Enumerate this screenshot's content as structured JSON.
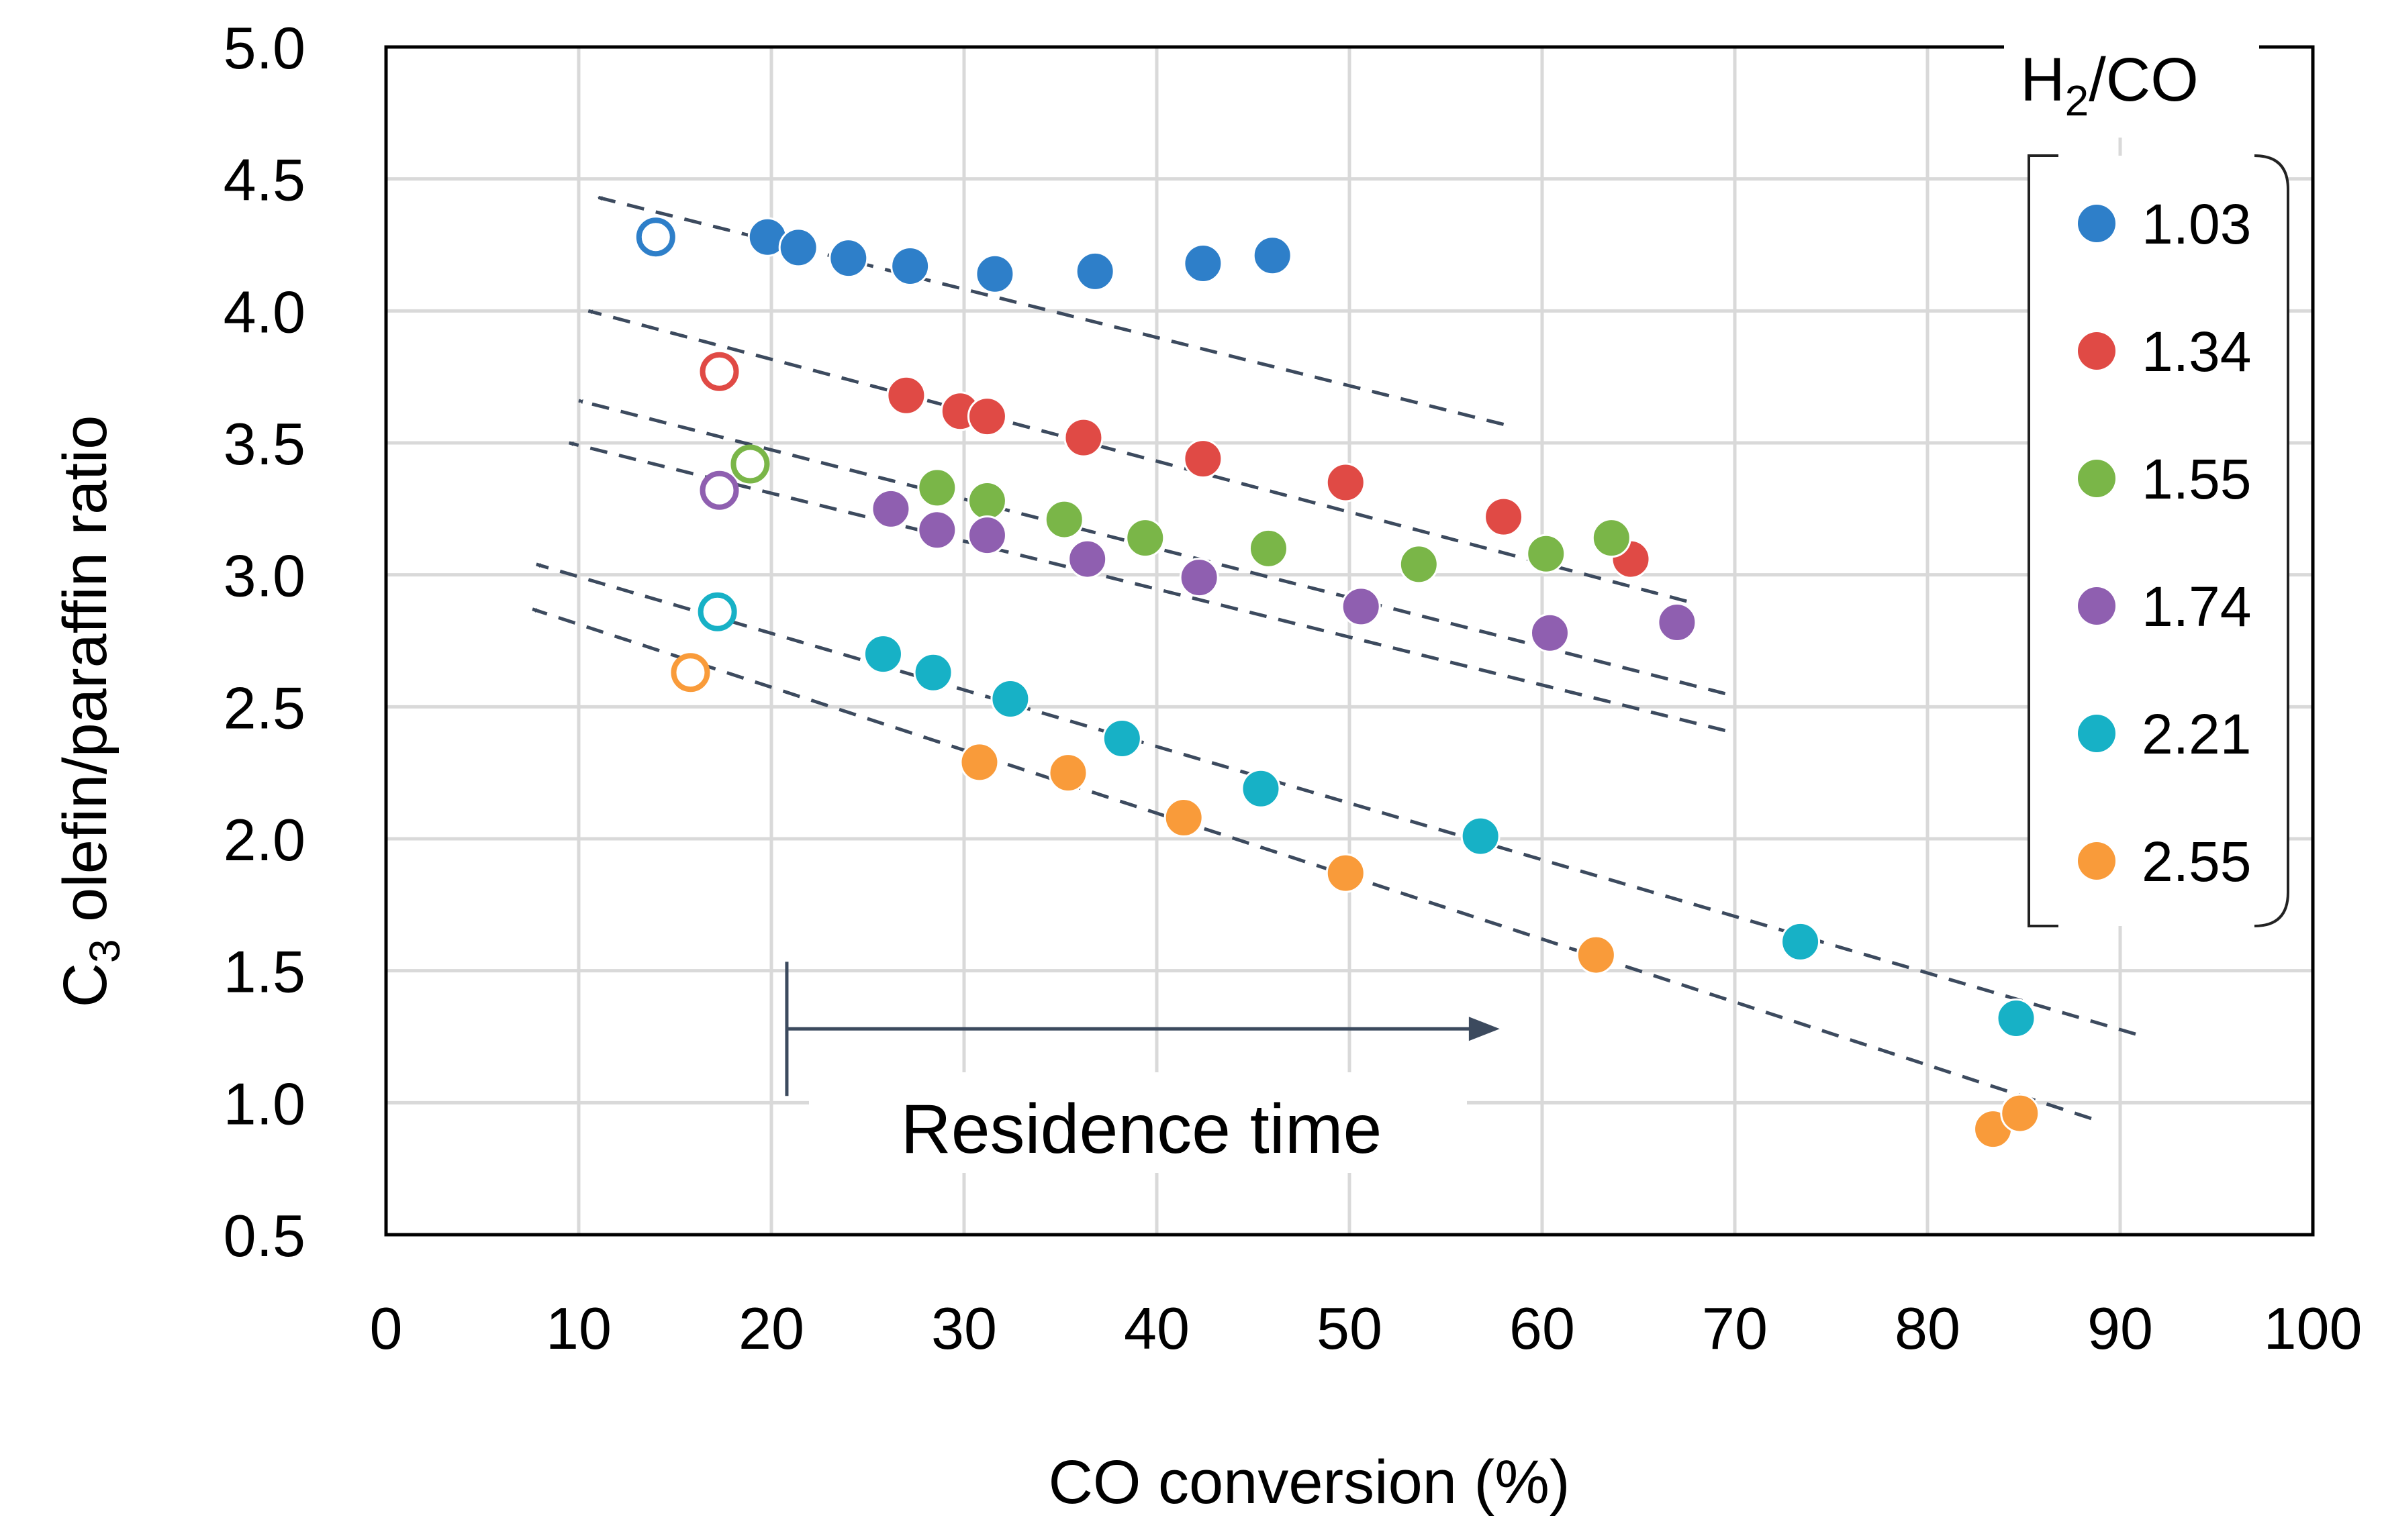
{
  "chart_data": {
    "type": "scatter",
    "title": "",
    "xlabel": "CO conversion (%)",
    "ylabel_main": "C",
    "ylabel_sub": "3",
    "ylabel_rest": " olefin/paraffin ratio",
    "xlim": [
      0,
      100
    ],
    "ylim": [
      0.5,
      5.0
    ],
    "x_ticks": [
      0,
      10,
      20,
      30,
      40,
      50,
      60,
      70,
      80,
      90,
      100
    ],
    "x_tick_labels": [
      "0",
      "10",
      "20",
      "30",
      "40",
      "50",
      "60",
      "70",
      "80",
      "90",
      "100"
    ],
    "y_ticks": [
      0.5,
      1.0,
      1.5,
      2.0,
      2.5,
      3.0,
      3.5,
      4.0,
      4.5,
      5.0
    ],
    "y_tick_labels": [
      "0.5",
      "1.0",
      "1.5",
      "2.0",
      "2.5",
      "3.0",
      "3.5",
      "4.0",
      "4.5",
      "5.0"
    ],
    "grid": true,
    "legend": {
      "title_main": "H",
      "title_sub": "2",
      "title_rest": "/CO",
      "placement": "right"
    },
    "series": [
      {
        "name": "1.03",
        "color": "#2e7fc9",
        "open_points": [
          [
            14,
            4.28
          ]
        ],
        "x": [
          19.8,
          21.4,
          24.0,
          27.2,
          31.6,
          36.8,
          42.4,
          46.0
        ],
        "y": [
          4.28,
          4.24,
          4.2,
          4.17,
          4.14,
          4.15,
          4.18,
          4.21
        ],
        "trend": [
          [
            58.0,
            3.57
          ],
          [
            11.0,
            4.43
          ]
        ]
      },
      {
        "name": "1.34",
        "color": "#e04a45",
        "open_points": [
          [
            17.3,
            3.77
          ]
        ],
        "x": [
          27.0,
          29.8,
          31.2,
          36.2,
          42.4,
          49.8,
          58.0,
          64.6
        ],
        "y": [
          3.68,
          3.62,
          3.6,
          3.52,
          3.44,
          3.35,
          3.22,
          3.06
        ],
        "trend": [
          [
            67.5,
            2.9
          ],
          [
            10.5,
            4.0
          ]
        ]
      },
      {
        "name": "1.55",
        "color": "#7ab648",
        "open_points": [
          [
            18.9,
            3.42
          ]
        ],
        "x": [
          28.6,
          31.2,
          35.2,
          39.4,
          45.8,
          53.6,
          60.2,
          63.6
        ],
        "y": [
          3.33,
          3.28,
          3.21,
          3.14,
          3.1,
          3.04,
          3.08,
          3.14
        ],
        "trend": [
          [
            69.5,
            2.55
          ],
          [
            10.0,
            3.66
          ]
        ]
      },
      {
        "name": "1.74",
        "color": "#8f5fb0",
        "open_points": [
          [
            17.3,
            3.32
          ]
        ],
        "x": [
          26.2,
          28.6,
          31.2,
          36.4,
          42.2,
          50.6,
          60.4,
          67.0
        ],
        "y": [
          3.25,
          3.17,
          3.15,
          3.06,
          2.99,
          2.88,
          2.78,
          2.82
        ],
        "trend": [
          [
            69.5,
            2.41
          ],
          [
            9.5,
            3.5
          ]
        ]
      },
      {
        "name": "2.21",
        "color": "#17b1c6",
        "open_points": [
          [
            17.2,
            2.86
          ]
        ],
        "x": [
          25.8,
          28.4,
          32.4,
          38.2,
          45.4,
          56.8,
          73.4,
          84.6
        ],
        "y": [
          2.7,
          2.63,
          2.53,
          2.38,
          2.19,
          2.01,
          1.61,
          1.32
        ],
        "trend": [
          [
            90.8,
            1.26
          ],
          [
            7.8,
            3.04
          ]
        ]
      },
      {
        "name": "2.55",
        "color": "#f99b3a",
        "open_points": [
          [
            15.8,
            2.63
          ]
        ],
        "x": [
          30.8,
          35.4,
          41.4,
          49.8,
          62.8,
          83.4,
          84.8
        ],
        "y": [
          2.29,
          2.25,
          2.08,
          1.87,
          1.56,
          0.9,
          0.96
        ],
        "trend": [
          [
            88.5,
            0.94
          ],
          [
            7.6,
            2.87
          ]
        ]
      }
    ],
    "annotation": {
      "text": "Residence time",
      "arrow_from": [
        20.8,
        1.28
      ],
      "arrow_to": [
        57.8,
        1.28
      ]
    }
  }
}
